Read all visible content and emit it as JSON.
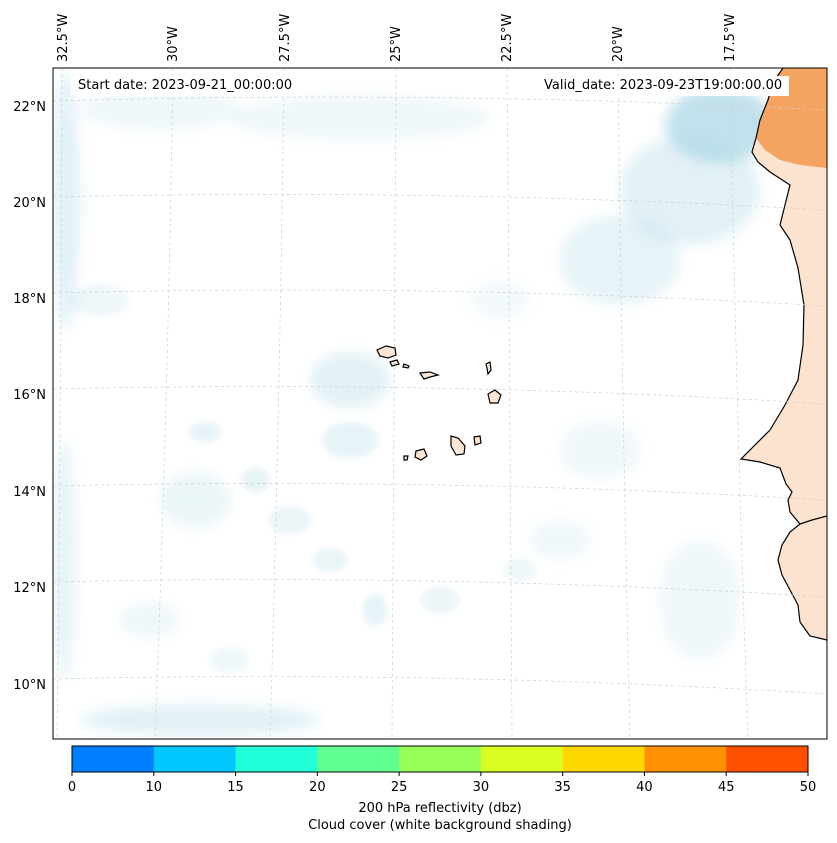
{
  "map": {
    "start_date": "Start date: 2023-09-21_00:00:00",
    "valid_date": "Valid_date: 2023-09-23T19:00:00.00",
    "lon_labels": [
      "32.5°W",
      "30°W",
      "27.5°W",
      "25°W",
      "22.5°W",
      "20°W",
      "17.5°W"
    ],
    "lat_labels": [
      "22°N",
      "20°N",
      "18°N",
      "16°N",
      "14°N",
      "12°N",
      "10°N"
    ]
  },
  "colorbar": {
    "ticks": [
      "0",
      "10",
      "15",
      "20",
      "25",
      "30",
      "35",
      "40",
      "45",
      "50"
    ],
    "colors": [
      "#0080ff",
      "#00c8ff",
      "#20ffd8",
      "#60ff90",
      "#98ff58",
      "#d8ff20",
      "#ffd800",
      "#ff9000",
      "#ff5000"
    ],
    "label_line1": "200 hPa reflectivity (dbz)",
    "label_line2": "Cloud cover (white background shading)"
  },
  "colors": {
    "cloud": "#aed8e6",
    "land_hot": "#f4a460",
    "land_warm": "#fbd7bb",
    "grid": "#cfcfcf"
  }
}
